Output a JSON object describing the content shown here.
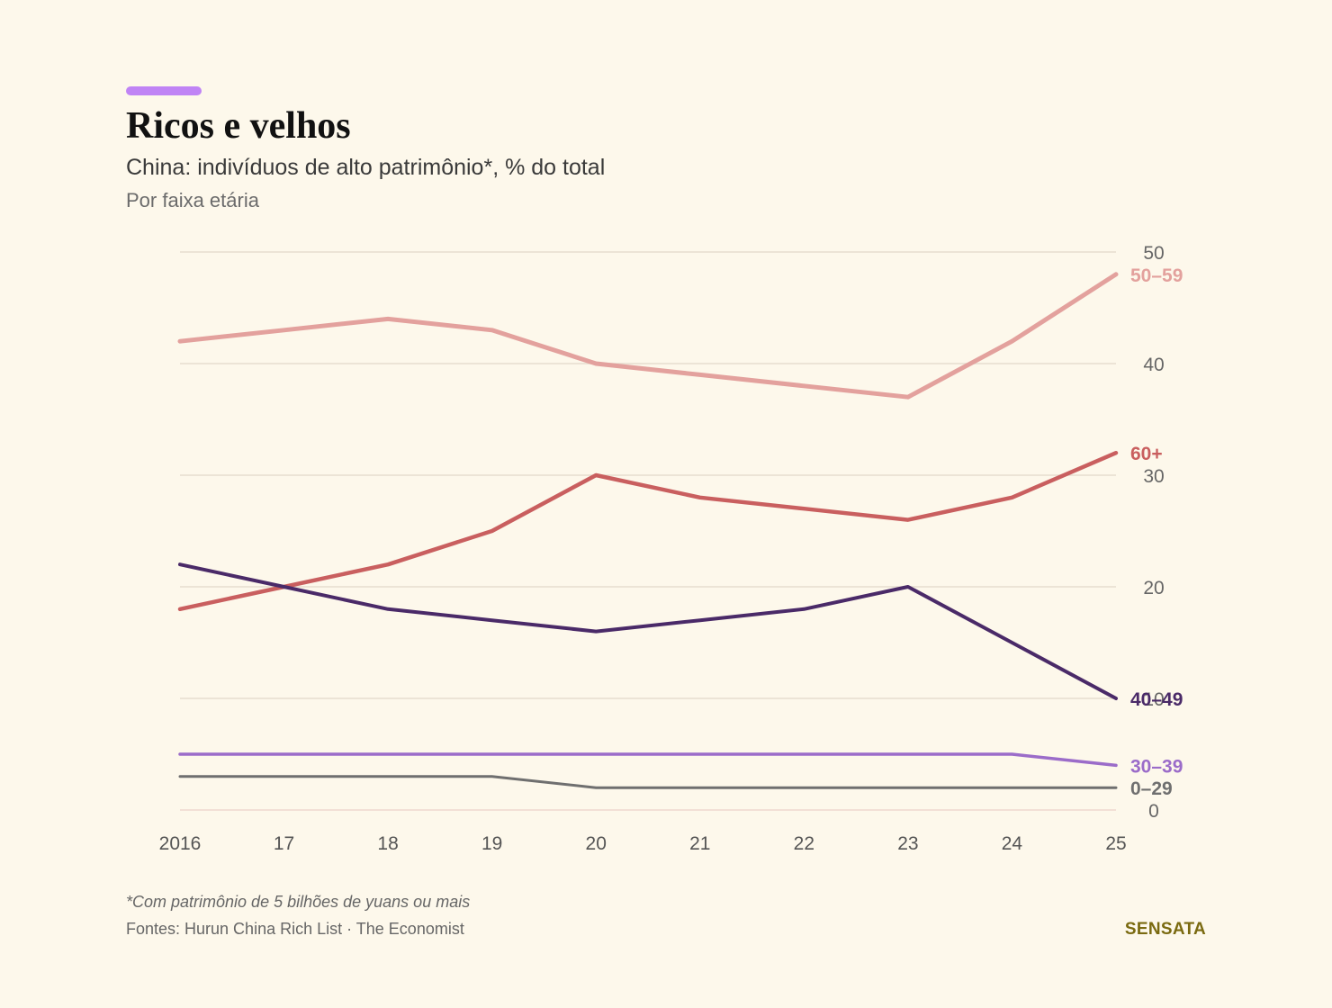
{
  "header": {
    "title": "Ricos e velhos",
    "subtitle": "China: indivíduos de alto patrimônio*, % do total",
    "subsubtitle": "Por faixa etária",
    "accent_color": "#c084f5"
  },
  "footer": {
    "footnote": "*Com patrimônio de 5 bilhões de yuans ou mais",
    "source": "Fontes: Hurun China Rich List · The Economist",
    "brand": "SENSATA",
    "brand_color": "#7a6a10"
  },
  "chart_data": {
    "type": "line",
    "title": "Ricos e velhos",
    "xlabel": "",
    "ylabel": "",
    "x": [
      2016,
      2017,
      2018,
      2019,
      2020,
      2021,
      2022,
      2023,
      2024,
      2025
    ],
    "x_tick_labels": [
      "2016",
      "17",
      "18",
      "19",
      "20",
      "21",
      "22",
      "23",
      "24",
      "25"
    ],
    "y_ticks": [
      0,
      10,
      20,
      30,
      40,
      50
    ],
    "y_tick_labels": [
      "0",
      "10",
      "20",
      "30",
      "40",
      "50"
    ],
    "ylim": [
      0,
      50
    ],
    "grid": true,
    "y_axis_position": "right",
    "series": [
      {
        "name": "50–59",
        "color": "#e3a19d",
        "values": [
          42,
          43,
          44,
          43,
          40,
          39,
          38,
          37,
          42,
          48
        ]
      },
      {
        "name": "60+",
        "color": "#c95f5f",
        "values": [
          18,
          20,
          22,
          25,
          30,
          28,
          27,
          26,
          28,
          32
        ]
      },
      {
        "name": "40–49",
        "color": "#4a2a68",
        "values": [
          22,
          20,
          18,
          17,
          16,
          17,
          18,
          20,
          15,
          10
        ]
      },
      {
        "name": "30–39",
        "color": "#9b6cc9",
        "values": [
          5,
          5,
          5,
          5,
          5,
          5,
          5,
          5,
          5,
          4
        ]
      },
      {
        "name": "0–29",
        "color": "#6f6f6f",
        "values": [
          3,
          3,
          3,
          3,
          2,
          2,
          2,
          2,
          2,
          2
        ]
      }
    ]
  }
}
